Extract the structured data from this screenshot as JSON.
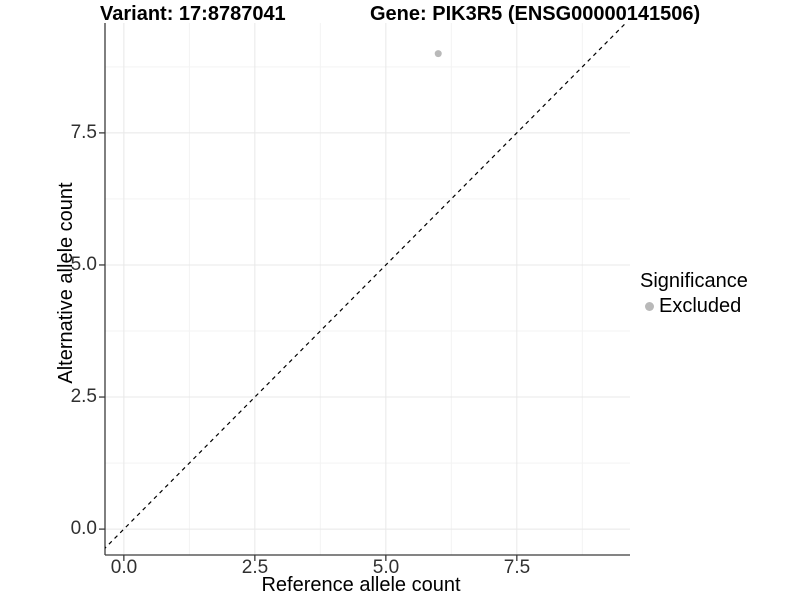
{
  "chart_data": {
    "type": "scatter",
    "title_variant": "Variant: 17:8787041",
    "title_gene": "Gene: PIK3R5 (ENSG00000141506)",
    "xlabel": "Reference allele count",
    "ylabel": "Alternative allele count",
    "x_tick_labels": [
      "0.0",
      "2.5",
      "5.0",
      "7.5"
    ],
    "y_tick_labels": [
      "0.0",
      "2.5",
      "5.0",
      "7.5"
    ],
    "x_tick_values": [
      0,
      2.5,
      5,
      7.5
    ],
    "y_tick_values": [
      0,
      2.5,
      5,
      7.5
    ],
    "x_minor_ticks": [
      1.25,
      3.75,
      6.25,
      8.75
    ],
    "y_minor_ticks": [
      1.25,
      3.75,
      6.25,
      8.75
    ],
    "xlim": [
      -0.36,
      9.66
    ],
    "ylim": [
      -0.49,
      9.58
    ],
    "grid": true,
    "points": [
      {
        "x": 6,
        "y": 9,
        "significance": "Excluded"
      }
    ],
    "reference_line": {
      "style": "dashed",
      "slope": 1,
      "intercept": 0
    },
    "legend": {
      "title": "Significance",
      "position": "right",
      "entries": [
        {
          "label": "Excluded",
          "color": "#b9b9b9"
        }
      ]
    },
    "colors": {
      "point": "#b9b9b9",
      "grid_major": "#e8e8e8",
      "grid_minor": "#f3f3f3",
      "axis": "#3b3b3b",
      "reference_line": "#000000",
      "background": "#ffffff"
    }
  }
}
